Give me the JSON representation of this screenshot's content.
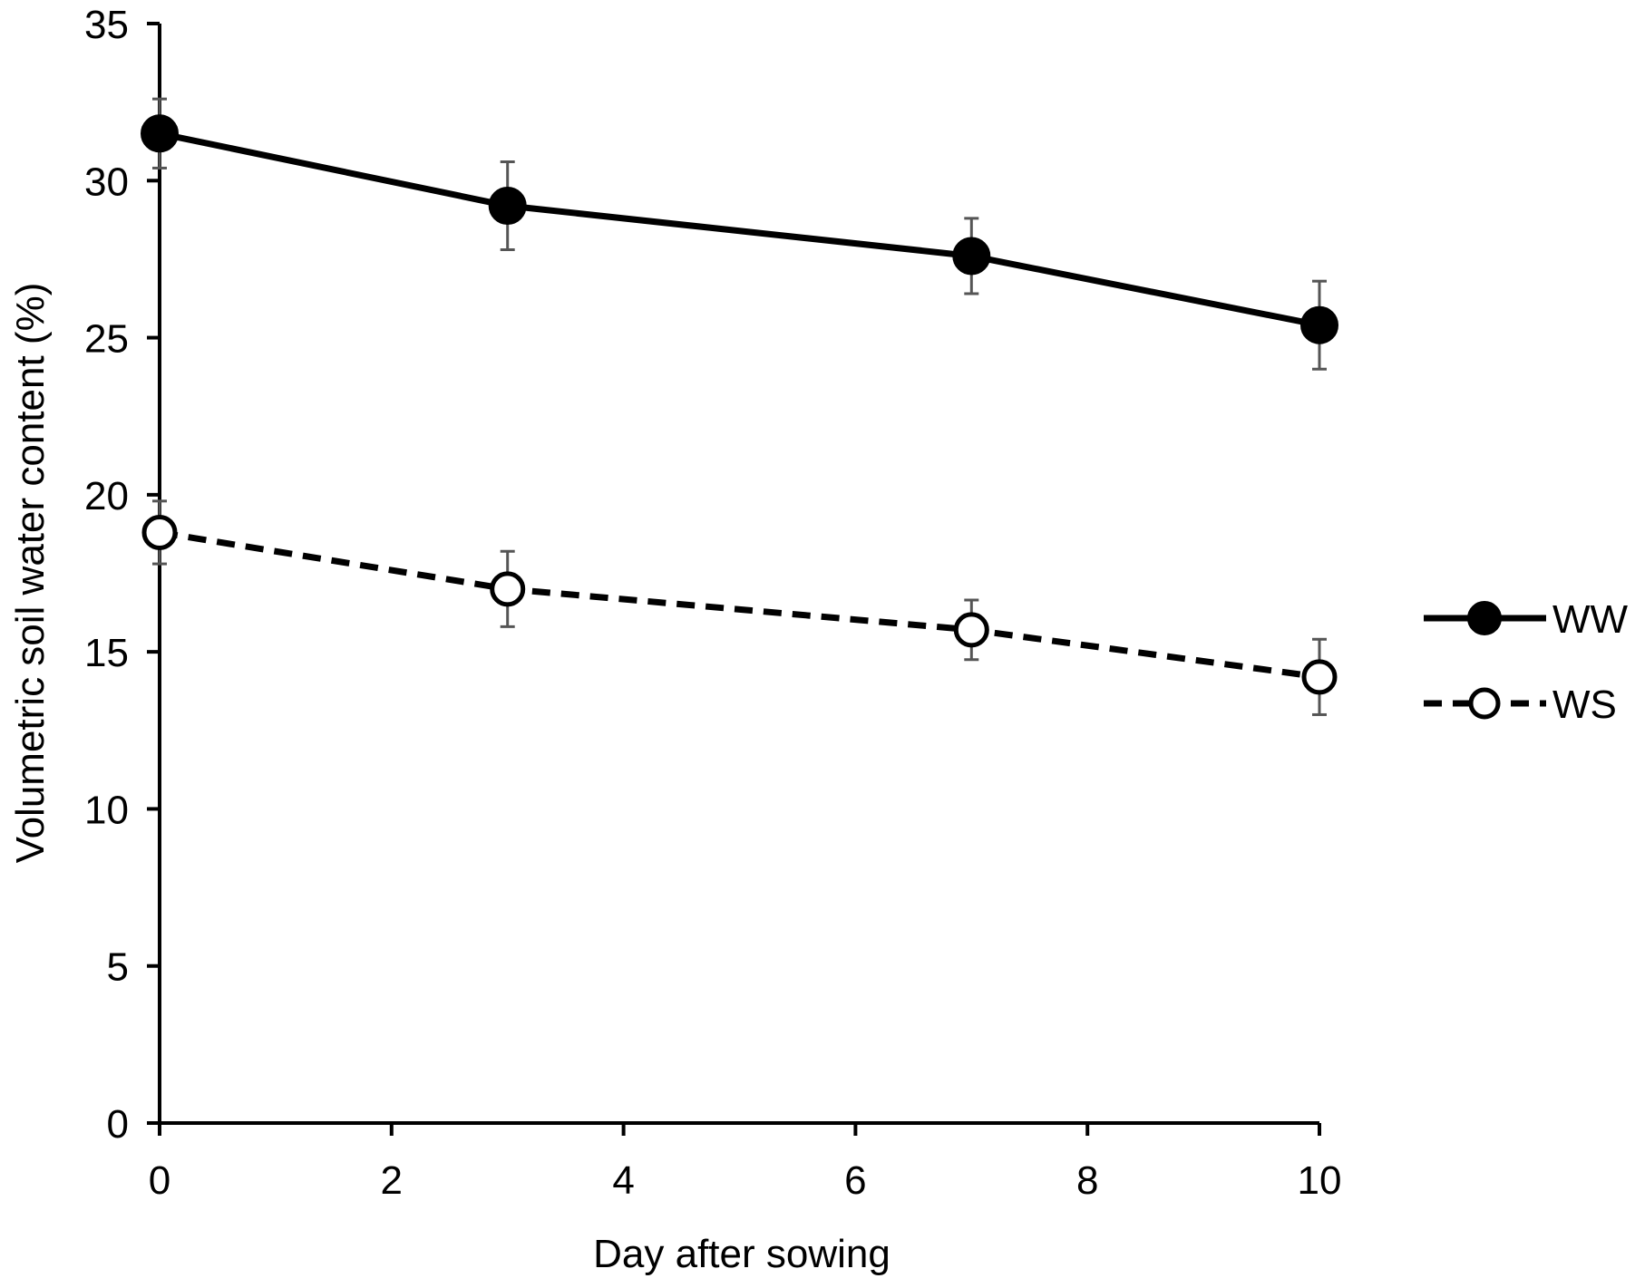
{
  "chart_data": {
    "type": "line",
    "title": "",
    "xlabel": "Day after sowing",
    "ylabel": "Volumetric soil water content (%)",
    "xlim": [
      0,
      10
    ],
    "ylim": [
      0,
      35
    ],
    "xticks": [
      0,
      2,
      4,
      6,
      8,
      10
    ],
    "yticks": [
      0,
      5,
      10,
      15,
      20,
      25,
      30,
      35
    ],
    "xtick_labels": [
      "0",
      "2",
      "4",
      "6",
      "8",
      "10"
    ],
    "ytick_labels": [
      "0",
      "5",
      "10",
      "15",
      "20",
      "25",
      "30",
      "35"
    ],
    "grid": false,
    "legend_position": "right",
    "series": [
      {
        "name": "WW",
        "marker": "filled-circle",
        "line_style": "solid",
        "color": "#000000",
        "x": [
          0,
          3,
          7,
          10
        ],
        "y": [
          31.5,
          29.2,
          27.6,
          25.4
        ],
        "error": [
          1.1,
          1.4,
          1.2,
          1.4
        ]
      },
      {
        "name": "WS",
        "marker": "open-circle",
        "line_style": "dashed",
        "color": "#000000",
        "x": [
          0,
          3,
          7,
          10
        ],
        "y": [
          18.8,
          17.0,
          15.7,
          14.2
        ],
        "error": [
          1.0,
          1.2,
          0.95,
          1.2
        ]
      }
    ]
  }
}
